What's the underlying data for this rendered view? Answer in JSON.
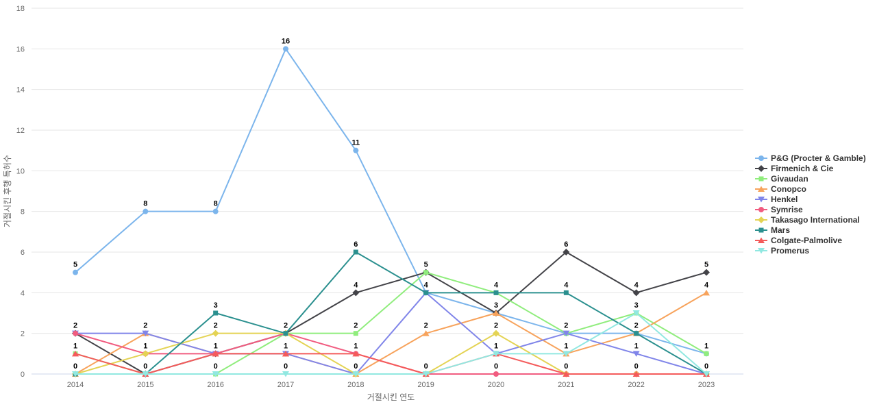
{
  "chart_data": {
    "type": "line",
    "title": "",
    "xlabel": "거절시킨 연도",
    "ylabel": "거절시킨 후행 특허수",
    "x": [
      2014,
      2015,
      2016,
      2017,
      2018,
      2019,
      2020,
      2021,
      2022,
      2023
    ],
    "ylim": [
      0,
      18
    ],
    "ytick_step": 2,
    "grid": true,
    "legend_position": "right",
    "series": [
      {
        "name": "P&G (Procter & Gamble)",
        "color": "#7cb5ec",
        "marker": "circle",
        "values": [
          5,
          8,
          8,
          16,
          11,
          4,
          3,
          2,
          2,
          1
        ]
      },
      {
        "name": "Firmenich & Cie",
        "color": "#434348",
        "marker": "diamond",
        "values": [
          2,
          0,
          1,
          2,
          4,
          5,
          3,
          6,
          4,
          5
        ]
      },
      {
        "name": "Givaudan",
        "color": "#90ed7d",
        "marker": "square",
        "values": [
          1,
          0,
          0,
          2,
          2,
          5,
          4,
          2,
          3,
          1
        ]
      },
      {
        "name": "Conopco",
        "color": "#f7a35c",
        "marker": "triangle",
        "values": [
          0,
          2,
          1,
          1,
          0,
          2,
          3,
          1,
          2,
          4
        ]
      },
      {
        "name": "Henkel",
        "color": "#8085e9",
        "marker": "triangle-down",
        "values": [
          2,
          2,
          1,
          1,
          0,
          4,
          1,
          2,
          1,
          0
        ]
      },
      {
        "name": "Symrise",
        "color": "#f15c80",
        "marker": "circle",
        "values": [
          2,
          1,
          1,
          2,
          1,
          0,
          0,
          0,
          0,
          0
        ]
      },
      {
        "name": "Takasago International",
        "color": "#e4d354",
        "marker": "diamond",
        "values": [
          0,
          1,
          2,
          2,
          0,
          0,
          2,
          0,
          0,
          0
        ]
      },
      {
        "name": "Mars",
        "color": "#2b908f",
        "marker": "square",
        "values": [
          0,
          0,
          3,
          2,
          6,
          4,
          4,
          4,
          2,
          0
        ]
      },
      {
        "name": "Colgate-Palmolive",
        "color": "#f45b5b",
        "marker": "triangle",
        "values": [
          1,
          0,
          1,
          1,
          1,
          0,
          1,
          0,
          0,
          0
        ]
      },
      {
        "name": "Promerus",
        "color": "#91e8e1",
        "marker": "triangle-down",
        "values": [
          0,
          0,
          0,
          0,
          0,
          0,
          1,
          1,
          3,
          0
        ]
      }
    ]
  },
  "colors": {
    "background": "#ffffff",
    "grid": "#e6e6e6",
    "axis_line": "#ccd6eb",
    "tick_label": "#666666",
    "axis_title": "#666666",
    "data_label": "#000000",
    "legend_text": "#333333"
  }
}
